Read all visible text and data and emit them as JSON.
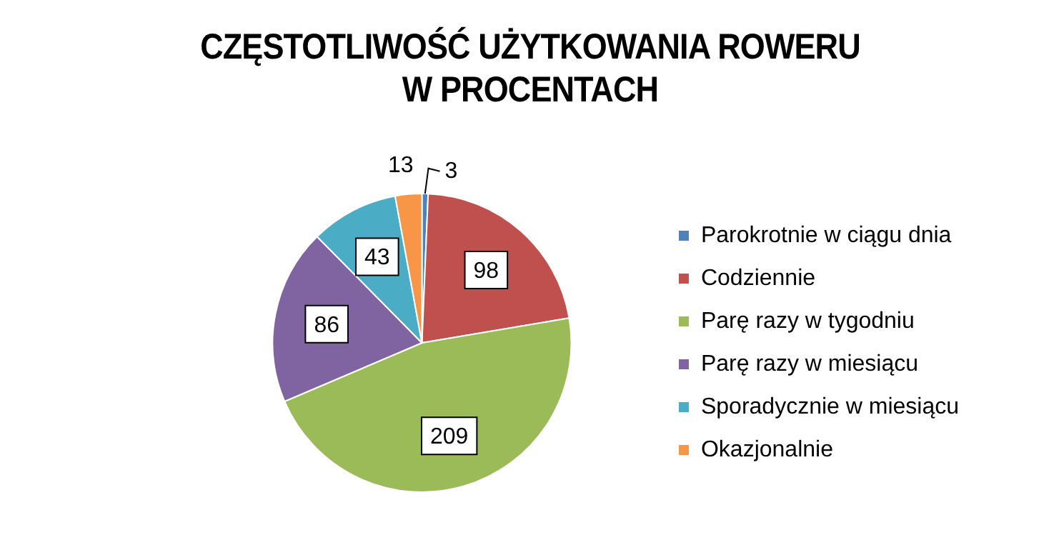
{
  "chart_data": {
    "type": "pie",
    "title": "CZĘSTOTLIWOŚĆ UŻYTKOWANIA ROWERU W PROCENTACH",
    "categories": [
      "Parokrotnie w ciągu dnia",
      "Codziennie",
      "Parę razy w tygodniu",
      "Parę razy w miesiącu",
      "Sporadycznie w miesiącu",
      "Okazjonalnie"
    ],
    "values": [
      3,
      98,
      209,
      86,
      43,
      13
    ],
    "colors": [
      "#4f81bd",
      "#c0504d",
      "#9bbb59",
      "#8064a2",
      "#4bacc6",
      "#f79646"
    ],
    "data_labels": true,
    "legend": "right"
  }
}
